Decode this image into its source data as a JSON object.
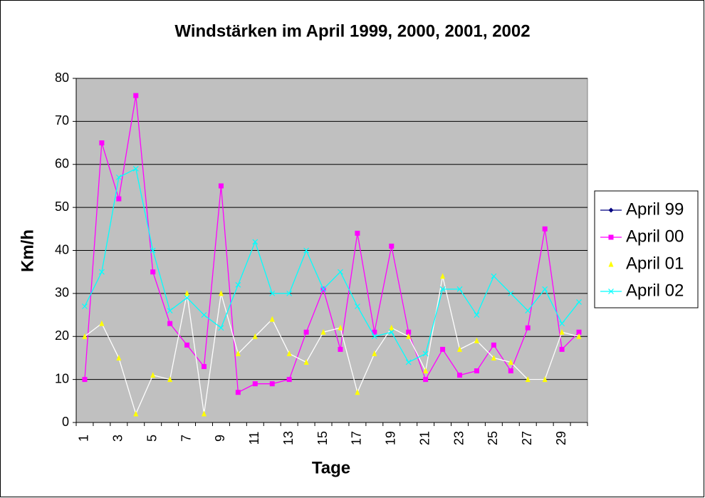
{
  "chart_data": {
    "type": "line",
    "title": "Windstärken im April 1999, 2000, 2001, 2002",
    "xlabel": "Tage",
    "ylabel": "Km/h",
    "categories": [
      "1",
      null,
      "3",
      null,
      "5",
      null,
      "7",
      null,
      "9",
      null,
      "11",
      null,
      "13",
      null,
      "15",
      null,
      "17",
      null,
      "19",
      null,
      "21",
      null,
      "23",
      null,
      "25",
      null,
      "27",
      null,
      "29",
      null
    ],
    "ylim": [
      0,
      80
    ],
    "yticks": [
      0,
      10,
      20,
      30,
      40,
      50,
      60,
      70,
      80
    ],
    "grid": true,
    "legend": "right",
    "series": [
      {
        "name": "April 99",
        "color": "#000080",
        "line_color": "#000080",
        "marker": "diamond",
        "values": [
          null,
          null,
          null,
          null,
          null,
          null,
          null,
          null,
          null,
          null,
          null,
          null,
          null,
          null,
          null,
          null,
          null,
          null,
          null,
          null,
          null,
          null,
          null,
          null,
          null,
          null,
          null,
          null,
          null,
          null
        ]
      },
      {
        "name": "April 00",
        "color": "#ff00ff",
        "line_color": "#ff00ff",
        "marker": "square",
        "values": [
          10,
          65,
          52,
          76,
          35,
          23,
          18,
          13,
          55,
          7,
          9,
          9,
          10,
          21,
          31,
          17,
          44,
          21,
          41,
          21,
          10,
          17,
          11,
          12,
          18,
          12,
          22,
          45,
          17,
          21
        ]
      },
      {
        "name": "April 01",
        "color": "#ffff00",
        "line_color": "#ffffff",
        "marker": "triangle",
        "values": [
          20,
          23,
          15,
          2,
          11,
          10,
          30,
          2,
          30,
          16,
          20,
          24,
          16,
          14,
          21,
          22,
          7,
          16,
          22,
          20,
          12,
          34,
          17,
          19,
          15,
          14,
          10,
          10,
          21,
          20
        ]
      },
      {
        "name": "April 02",
        "color": "#00ffff",
        "line_color": "#00ffff",
        "marker": "x",
        "values": [
          27,
          35,
          57,
          59,
          40,
          26,
          29,
          25,
          22,
          32,
          42,
          30,
          30,
          40,
          31,
          35,
          27,
          20,
          21,
          14,
          16,
          31,
          31,
          25,
          34,
          30,
          26,
          31,
          23,
          28
        ]
      }
    ]
  }
}
